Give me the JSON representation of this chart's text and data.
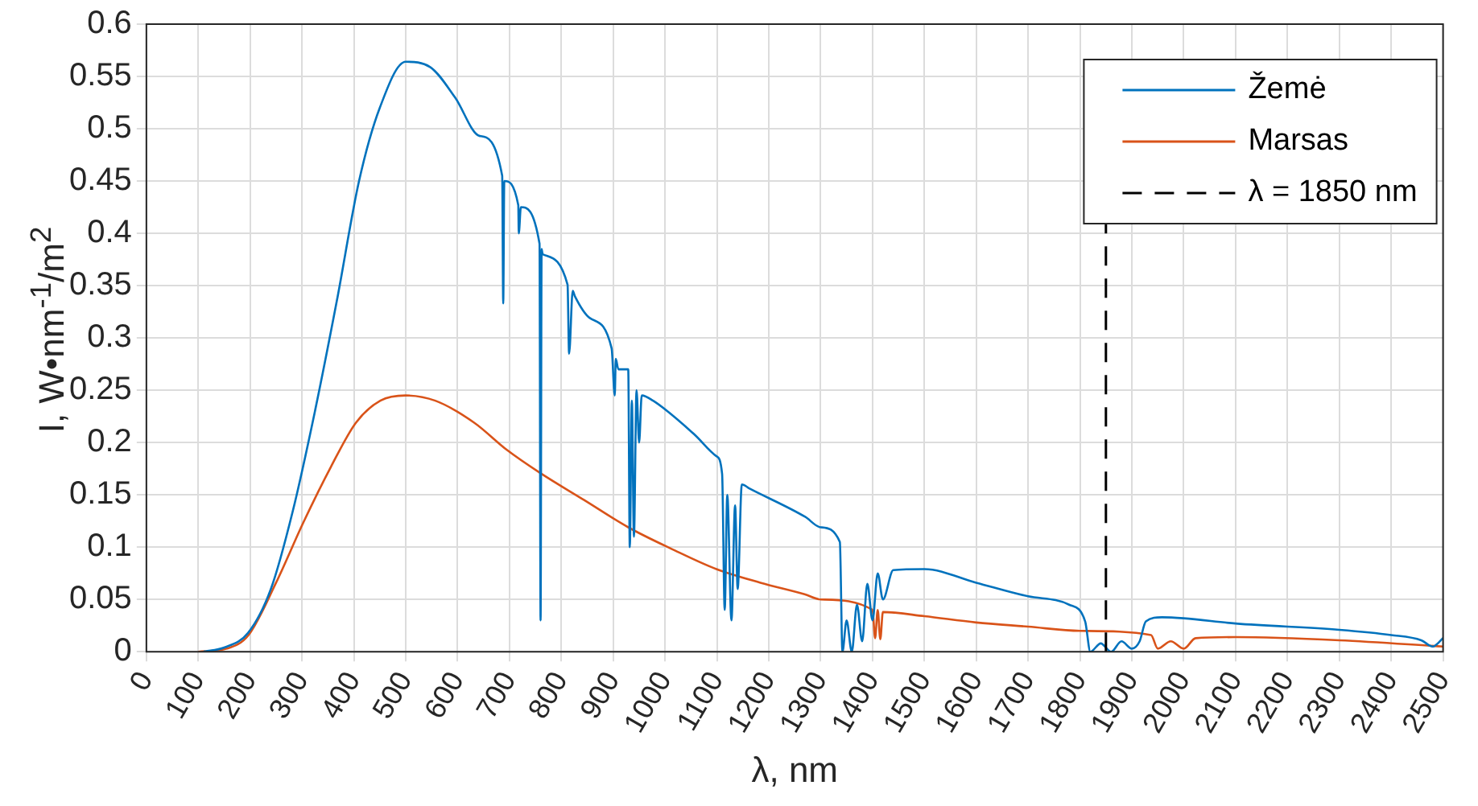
{
  "chart_data": {
    "type": "line",
    "xlabel": "λ, nm",
    "ylabel": "I, W•nm$^{-1}$/m$^{2}$",
    "xlim": [
      0,
      2500
    ],
    "xticks": [
      0,
      100,
      200,
      300,
      400,
      500,
      600,
      700,
      800,
      900,
      1000,
      1100,
      1200,
      1300,
      1400,
      1500,
      1600,
      1700,
      1800,
      1900,
      2000,
      2100,
      2200,
      2300,
      2400,
      2500
    ],
    "ylim": [
      0,
      0.6
    ],
    "yticks": [
      0,
      0.05,
      0.1,
      0.15,
      0.2,
      0.25,
      0.3,
      0.35,
      0.4,
      0.45,
      0.5,
      0.55,
      0.6
    ],
    "grid": true,
    "legend": "top right",
    "line_style": "solid",
    "marker": "none",
    "series": [
      {
        "name": "Žemė",
        "color": "#0072bd",
        "x": [
          110,
          150,
          196,
          240,
          282,
          325,
          367,
          410,
          450,
          500,
          547,
          595,
          643,
          686,
          688,
          690,
          717,
          718,
          722,
          758,
          760,
          762,
          764,
          812,
          815,
          822,
          826,
          855,
          897,
          903,
          905,
          910,
          929,
          932,
          936,
          940,
          945,
          950,
          955,
          977,
          1056,
          1099,
          1110,
          1115,
          1120,
          1128,
          1135,
          1140,
          1148,
          1163,
          1270,
          1300,
          1337,
          1342,
          1350,
          1360,
          1370,
          1380,
          1390,
          1400,
          1410,
          1420,
          1440,
          1500,
          1600,
          1700,
          1779,
          1810,
          1820,
          1840,
          1860,
          1880,
          1900,
          1915,
          1927,
          1958,
          2000,
          2100,
          2300,
          2400,
          2458,
          2480,
          2500
        ],
        "values": [
          0,
          0.004,
          0.018,
          0.06,
          0.134,
          0.23,
          0.335,
          0.45,
          0.52,
          0.564,
          0.559,
          0.53,
          0.493,
          0.455,
          0.333,
          0.45,
          0.427,
          0.4,
          0.425,
          0.39,
          0.03,
          0.385,
          0.38,
          0.351,
          0.285,
          0.345,
          0.34,
          0.319,
          0.29,
          0.245,
          0.28,
          0.27,
          0.27,
          0.1,
          0.24,
          0.11,
          0.25,
          0.2,
          0.245,
          0.24,
          0.208,
          0.187,
          0.17,
          0.04,
          0.15,
          0.03,
          0.14,
          0.06,
          0.16,
          0.156,
          0.129,
          0.119,
          0.105,
          0,
          0.03,
          0,
          0.045,
          0.01,
          0.065,
          0.03,
          0.075,
          0.05,
          0.078,
          0.079,
          0.066,
          0.053,
          0.045,
          0.029,
          0,
          0.008,
          0,
          0.01,
          0.003,
          0.01,
          0.029,
          0.033,
          0.032,
          0.027,
          0.021,
          0.016,
          0.011,
          0.005,
          0.013
        ]
      },
      {
        "name": "Marsas",
        "color": "#d95319",
        "x": [
          100,
          155,
          197,
          250,
          303,
          356,
          404,
          451,
          500,
          557,
          632,
          695,
          759,
          844,
          929,
          1014,
          1099,
          1184,
          1269,
          1300,
          1400,
          1405,
          1410,
          1415,
          1420,
          1500,
          1600,
          1700,
          1800,
          1937,
          1950,
          1975,
          2000,
          2023,
          2100,
          2300,
          2500
        ],
        "values": [
          0,
          0.003,
          0.016,
          0.066,
          0.124,
          0.177,
          0.219,
          0.24,
          0.245,
          0.24,
          0.219,
          0.193,
          0.171,
          0.145,
          0.119,
          0.098,
          0.079,
          0.066,
          0.055,
          0.05,
          0.04,
          0.013,
          0.04,
          0.012,
          0.038,
          0.034,
          0.028,
          0.024,
          0.02,
          0.016,
          0.003,
          0.01,
          0.003,
          0.013,
          0.014,
          0.011,
          0.005
        ]
      }
    ],
    "ref_lines": [
      {
        "axis": "x",
        "value": 1850,
        "label": "λ = 1850 nm",
        "color": "#000000",
        "line_style": "dashed"
      }
    ]
  }
}
